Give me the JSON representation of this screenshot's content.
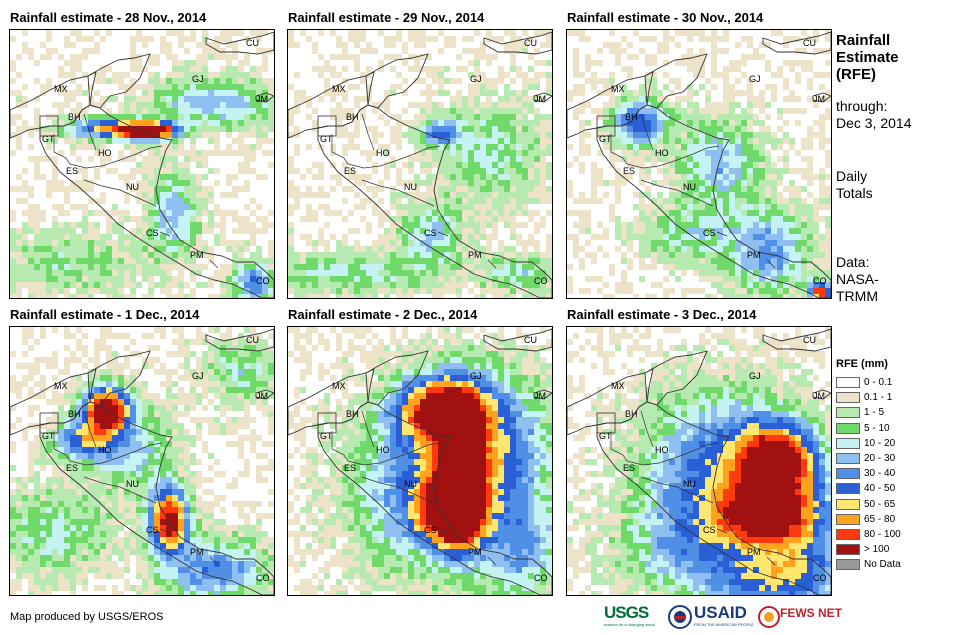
{
  "panels": [
    {
      "title": "Rainfall estimate - 28 Nov., 2014",
      "pattern": "p28"
    },
    {
      "title": "Rainfall estimate - 29 Nov., 2014",
      "pattern": "p29"
    },
    {
      "title": "Rainfall estimate - 30 Nov., 2014",
      "pattern": "p30"
    },
    {
      "title": "Rainfall estimate - 1 Dec., 2014",
      "pattern": "p1"
    },
    {
      "title": "Rainfall estimate - 2 Dec., 2014",
      "pattern": "p2"
    },
    {
      "title": "Rainfall estimate - 3 Dec., 2014",
      "pattern": "p3"
    }
  ],
  "country_labels": [
    "CU",
    "MX",
    "GJ",
    "JM",
    "BH",
    "GT",
    "HO",
    "ES",
    "NU",
    "CS",
    "PM",
    "CO"
  ],
  "side": {
    "heading_1": "Rainfall",
    "heading_2": "Estimate",
    "heading_3": "(RFE)",
    "through_1": "through:",
    "through_2": "Dec 3, 2014",
    "daily_1": "Daily",
    "daily_2": "Totals",
    "data_1": "Data:",
    "data_2": "NASA-",
    "data_3": "TRMM"
  },
  "legend": {
    "title": "RFE (mm)",
    "items": [
      {
        "label": "0 - 0.1",
        "color": "#ffffff"
      },
      {
        "label": "0.1 - 1",
        "color": "#ece3c8"
      },
      {
        "label": "1 - 5",
        "color": "#b7eab0"
      },
      {
        "label": "5 - 10",
        "color": "#6fd96a"
      },
      {
        "label": "10 - 20",
        "color": "#c5f3f3"
      },
      {
        "label": "20 - 30",
        "color": "#8ebff0"
      },
      {
        "label": "30 - 40",
        "color": "#4f8fe6"
      },
      {
        "label": "40 - 50",
        "color": "#2a5fd6"
      },
      {
        "label": "50 - 65",
        "color": "#ffe66e"
      },
      {
        "label": "65 - 80",
        "color": "#ffa21e"
      },
      {
        "label": "80 - 100",
        "color": "#ff3a0e"
      },
      {
        "label": "> 100",
        "color": "#a11111"
      },
      {
        "label": "No Data",
        "color": "#999999"
      }
    ]
  },
  "credit": "Map produced by USGS/EROS",
  "logos": [
    "USGS",
    "USAID",
    "FEWS NET"
  ],
  "logo_subtexts": [
    "science for a changing world",
    "FROM THE AMERICAN PEOPLE"
  ]
}
